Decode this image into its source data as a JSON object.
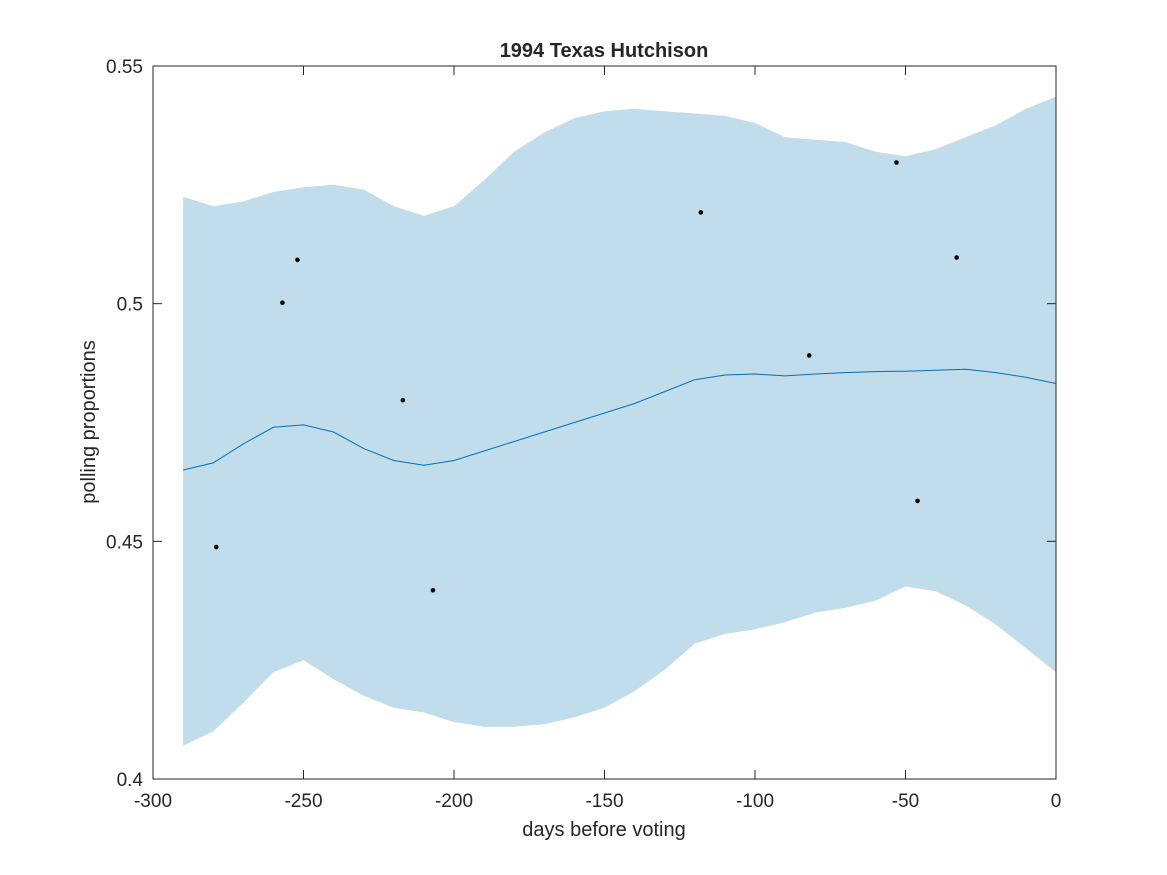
{
  "chart_data": {
    "type": "line",
    "title": "1994 Texas Hutchison",
    "xlabel": "days before voting",
    "ylabel": "polling proportions",
    "xlim": [
      -300,
      0
    ],
    "ylim": [
      0.4,
      0.55
    ],
    "xticks": [
      "-300",
      "-250",
      "-200",
      "-150",
      "-100",
      "-50",
      "0"
    ],
    "yticks": [
      "0.4",
      "0.45",
      "0.5",
      "0.55"
    ],
    "grid": false,
    "colors": {
      "mean": "#0072BD",
      "band": "#c1dcea",
      "points": "#000000",
      "axes": "#262626"
    },
    "mean": {
      "x": [
        -290,
        -280,
        -270,
        -260,
        -250,
        -240,
        -230,
        -220,
        -210,
        -200,
        -190,
        -180,
        -170,
        -160,
        -150,
        -140,
        -130,
        -120,
        -110,
        -100,
        -90,
        -80,
        -70,
        -60,
        -50,
        -40,
        -30,
        -20,
        -10,
        0
      ],
      "y": [
        0.465,
        0.4665,
        0.4705,
        0.474,
        0.4745,
        0.473,
        0.4695,
        0.467,
        0.466,
        0.467,
        0.469,
        0.471,
        0.473,
        0.475,
        0.477,
        0.479,
        0.4815,
        0.484,
        0.485,
        0.4852,
        0.4848,
        0.4852,
        0.4855,
        0.4857,
        0.4858,
        0.486,
        0.4862,
        0.4855,
        0.4845,
        0.4832
      ]
    },
    "band_upper": [
      0.5225,
      0.5205,
      0.5215,
      0.5235,
      0.5245,
      0.525,
      0.524,
      0.5205,
      0.5185,
      0.5205,
      0.526,
      0.532,
      0.536,
      0.539,
      0.5405,
      0.541,
      0.5405,
      0.54,
      0.5395,
      0.538,
      0.535,
      0.5345,
      0.534,
      0.532,
      0.531,
      0.5325,
      0.535,
      0.5375,
      0.541,
      0.5435
    ],
    "band_lower": [
      0.407,
      0.41,
      0.416,
      0.4225,
      0.425,
      0.421,
      0.4175,
      0.415,
      0.414,
      0.412,
      0.411,
      0.411,
      0.4115,
      0.413,
      0.415,
      0.4185,
      0.423,
      0.4285,
      0.4305,
      0.4315,
      0.433,
      0.435,
      0.436,
      0.4375,
      0.4405,
      0.4395,
      0.4365,
      0.4325,
      0.4275,
      0.4225
    ],
    "points": {
      "x": [
        -279,
        -257,
        -252,
        -217,
        -207,
        -118,
        -82,
        -53,
        -46,
        -33
      ],
      "y": [
        0.4488,
        0.5002,
        0.5092,
        0.4797,
        0.4397,
        0.5192,
        0.4891,
        0.5297,
        0.4585,
        0.5097
      ]
    }
  }
}
